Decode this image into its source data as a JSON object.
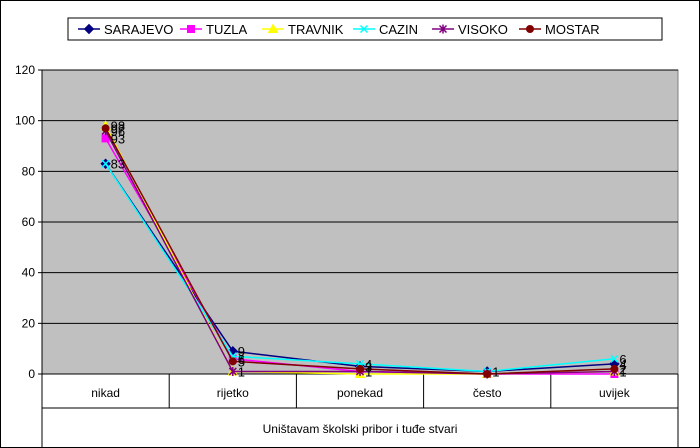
{
  "chart_data": {
    "type": "line",
    "title": "",
    "xlabel": "Uništavam školski pribor i tuđe stvari",
    "ylabel": "",
    "ylim": [
      0,
      120
    ],
    "yticks": [
      0,
      20,
      40,
      60,
      80,
      100,
      120
    ],
    "grid": true,
    "legend_position": "top",
    "categories": [
      "nikad",
      "rijetko",
      "ponekad",
      "često",
      "uvijek"
    ],
    "series": [
      {
        "name": "SARAJEVO",
        "color": "#000080",
        "marker": "diamond",
        "values": [
          83,
          9,
          3,
          1,
          4
        ]
      },
      {
        "name": "TUZLA",
        "color": "#ff00ff",
        "marker": "square",
        "values": [
          93,
          6,
          1,
          0,
          0
        ]
      },
      {
        "name": "TRAVNIK",
        "color": "#ffff00",
        "marker": "triangle",
        "values": [
          98,
          1,
          0,
          0,
          1
        ]
      },
      {
        "name": "CAZIN",
        "color": "#00ffff",
        "marker": "x",
        "values": [
          83,
          7,
          4,
          1,
          6
        ]
      },
      {
        "name": "VISOKO",
        "color": "#800080",
        "marker": "star",
        "values": [
          96,
          1,
          1,
          0,
          1
        ]
      },
      {
        "name": "MOSTAR",
        "color": "#800000",
        "marker": "circle",
        "values": [
          97,
          5,
          2,
          0,
          2
        ]
      }
    ],
    "data_labels": [
      {
        "category": 0,
        "value": 98,
        "text": "98"
      },
      {
        "category": 0,
        "value": 97,
        "text": "97"
      },
      {
        "category": 0,
        "value": 96,
        "text": "96"
      },
      {
        "category": 0,
        "value": 93,
        "text": "93"
      },
      {
        "category": 0,
        "value": 83,
        "text": "83"
      },
      {
        "category": 1,
        "value": 9,
        "text": "9"
      },
      {
        "category": 1,
        "value": 7,
        "text": "7"
      },
      {
        "category": 1,
        "value": 6,
        "text": "6"
      },
      {
        "category": 1,
        "value": 5,
        "text": "5"
      },
      {
        "category": 1,
        "value": 1,
        "text": "1"
      },
      {
        "category": 2,
        "value": 4,
        "text": "4"
      },
      {
        "category": 2,
        "value": 3,
        "text": "3"
      },
      {
        "category": 2,
        "value": 1,
        "text": "1"
      },
      {
        "category": 3,
        "value": 1,
        "text": "1"
      },
      {
        "category": 4,
        "value": 6,
        "text": "6"
      },
      {
        "category": 4,
        "value": 4,
        "text": "4"
      },
      {
        "category": 4,
        "value": 2,
        "text": "2"
      },
      {
        "category": 4,
        "value": 1,
        "text": "1"
      }
    ]
  }
}
